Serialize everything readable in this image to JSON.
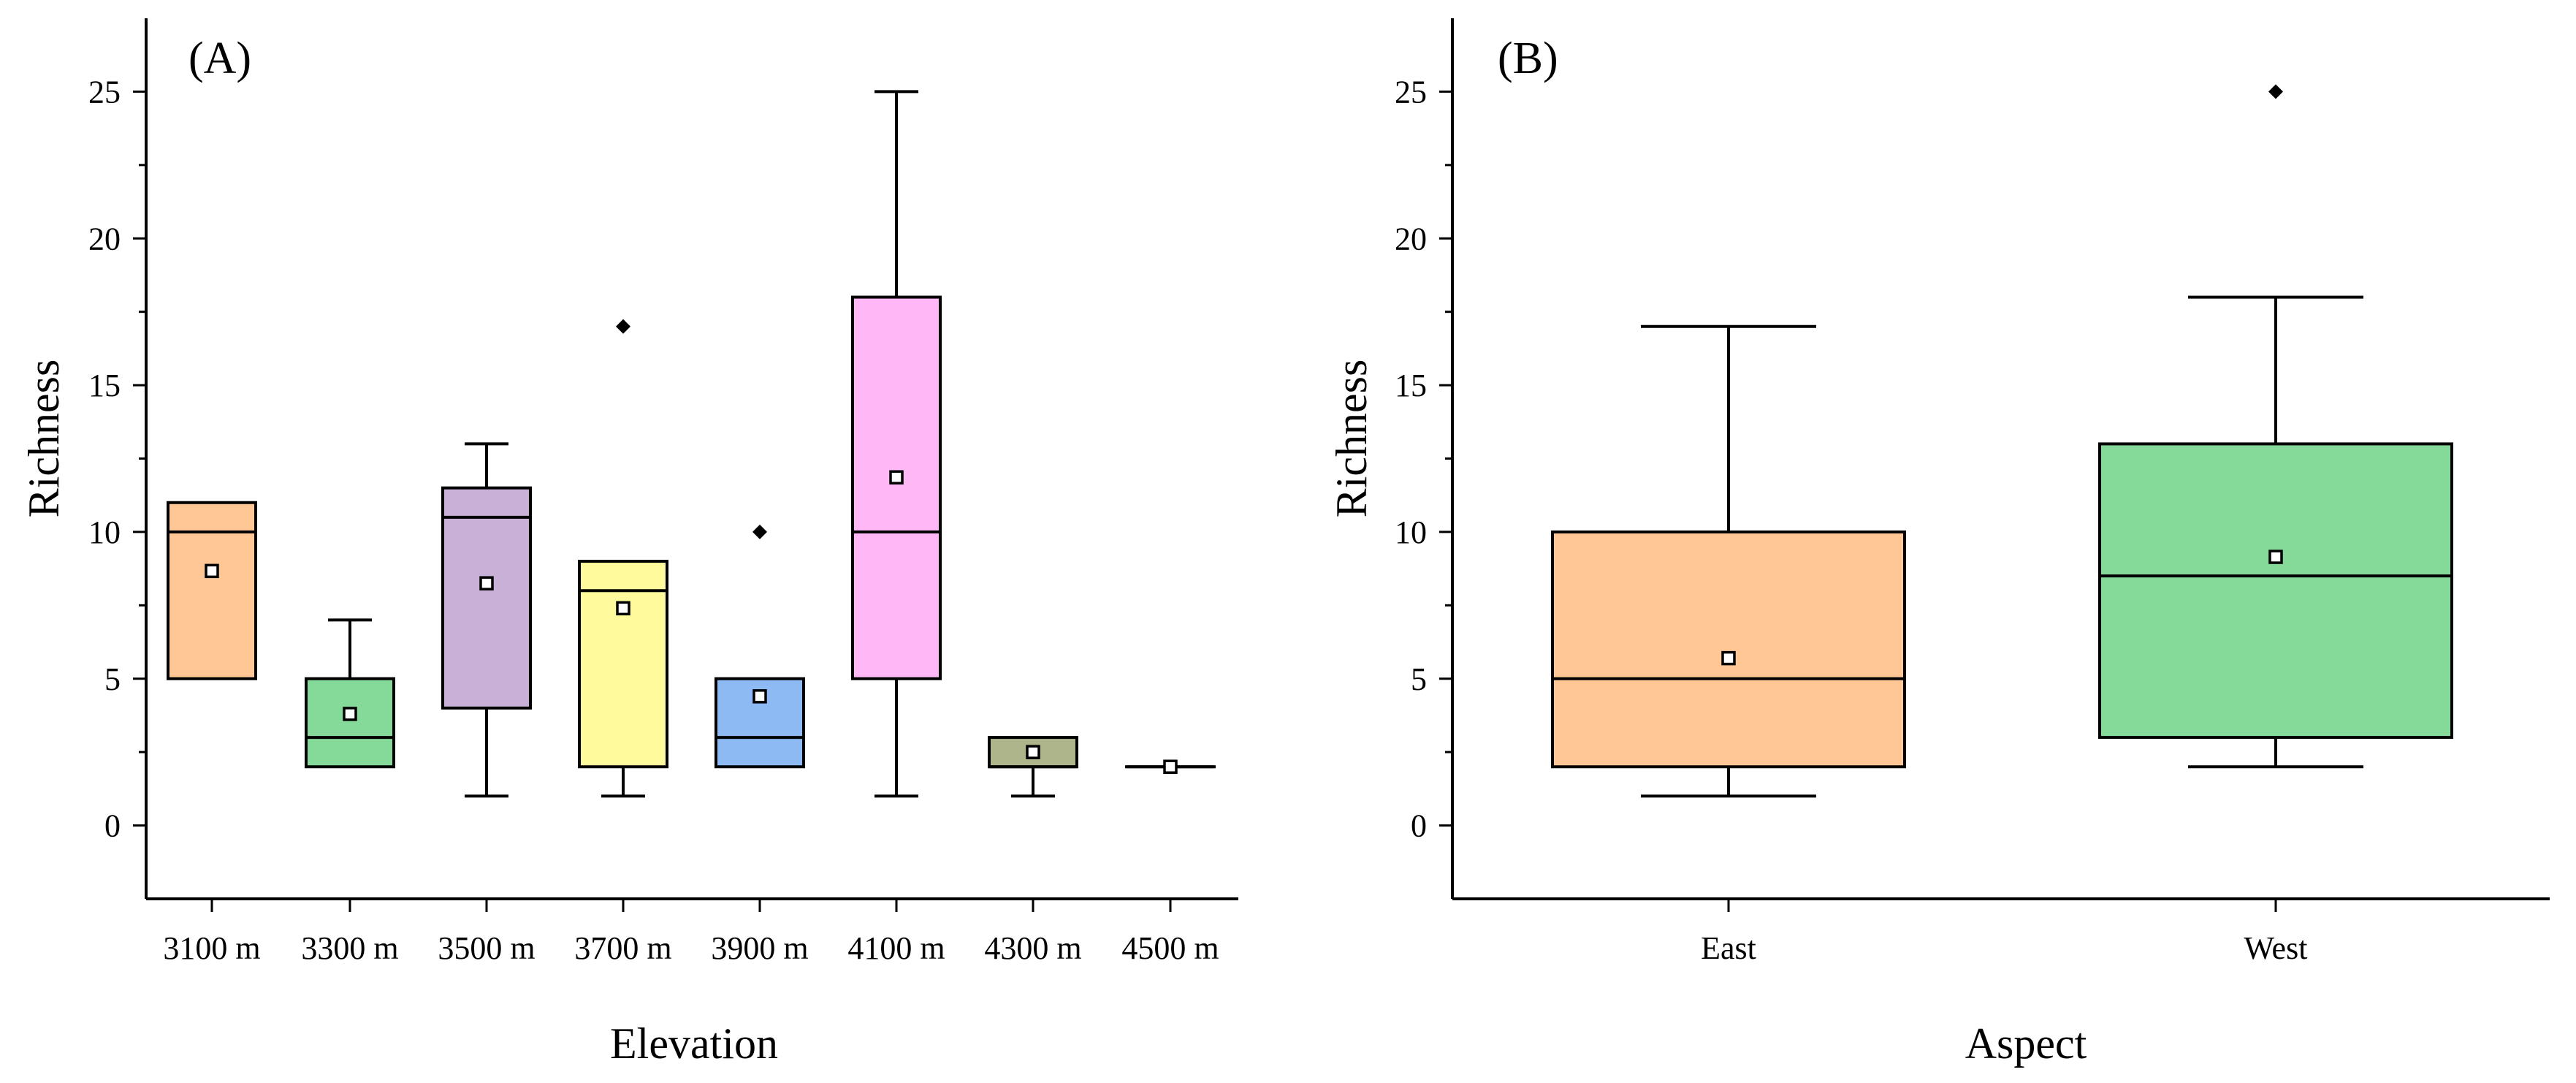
{
  "chart_data": [
    {
      "type": "box",
      "panel_label": "(A)",
      "xlabel": "Elevation",
      "ylabel": "Richness",
      "ylim": [
        -2.5,
        27.5
      ],
      "yticks": [
        "0",
        "5",
        "10",
        "15",
        "20",
        "25"
      ],
      "grid": false,
      "categories": [
        "3100 m",
        "3300 m",
        "3500 m",
        "3700 m",
        "3900 m",
        "4100 m",
        "4300 m",
        "4500 m"
      ],
      "boxes": [
        {
          "q1": 5,
          "median": 10,
          "q3": 11,
          "whisker_low": 5,
          "whisker_high": 11,
          "mean": 8.67,
          "outliers": [],
          "color": "#FFC795"
        },
        {
          "q1": 2,
          "median": 3,
          "q3": 5,
          "whisker_low": 2,
          "whisker_high": 7,
          "mean": 3.8,
          "outliers": [],
          "color": "#85DA99"
        },
        {
          "q1": 4,
          "median": 10.5,
          "q3": 11.5,
          "whisker_low": 1,
          "whisker_high": 13,
          "mean": 8.25,
          "outliers": [],
          "color": "#C8B0D6"
        },
        {
          "q1": 2,
          "median": 8,
          "q3": 9,
          "whisker_low": 1,
          "whisker_high": 9,
          "mean": 7.4,
          "outliers": [
            17
          ],
          "color": "#FFFB9C"
        },
        {
          "q1": 2,
          "median": 3,
          "q3": 5,
          "whisker_low": 2,
          "whisker_high": 5,
          "mean": 4.4,
          "outliers": [
            10
          ],
          "color": "#8DBAF2"
        },
        {
          "q1": 5,
          "median": 10,
          "q3": 18,
          "whisker_low": 1,
          "whisker_high": 25,
          "mean": 11.86,
          "outliers": [],
          "color": "#FFB7F5"
        },
        {
          "q1": 2,
          "median": 2,
          "q3": 3,
          "whisker_low": 1,
          "whisker_high": 3,
          "mean": 2.5,
          "outliers": [],
          "color": "#AEB58A"
        },
        {
          "q1": 2,
          "median": 2,
          "q3": 2,
          "whisker_low": 2,
          "whisker_high": 2,
          "mean": 2,
          "outliers": [],
          "color": "#9C9C9C"
        }
      ]
    },
    {
      "type": "box",
      "panel_label": "(B)",
      "xlabel": "Aspect",
      "ylabel": "Richness",
      "ylim": [
        -2.5,
        27.5
      ],
      "yticks": [
        "0",
        "5",
        "10",
        "15",
        "20",
        "25"
      ],
      "grid": false,
      "categories": [
        "East",
        "West"
      ],
      "boxes": [
        {
          "q1": 2,
          "median": 5,
          "q3": 10,
          "whisker_low": 1,
          "whisker_high": 17,
          "mean": 5.7,
          "outliers": [],
          "color": "#FFC795"
        },
        {
          "q1": 3,
          "median": 8.5,
          "q3": 13,
          "whisker_low": 2,
          "whisker_high": 18,
          "mean": 9.15,
          "outliers": [
            25
          ],
          "color": "#85DA99"
        }
      ]
    }
  ]
}
